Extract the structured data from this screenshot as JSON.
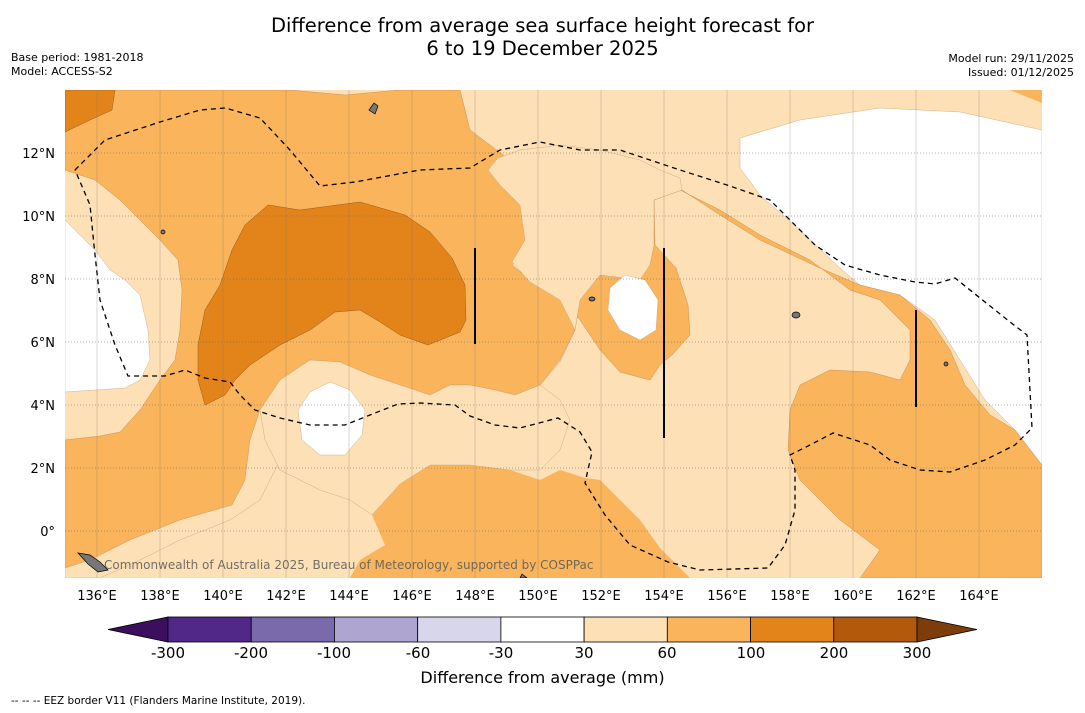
{
  "title": {
    "line1": "Difference from average sea surface height forecast for",
    "line2": "6 to 19 December 2025"
  },
  "meta": {
    "base_period": "Base period: 1981-2018",
    "model": "Model: ACCESS-S2",
    "model_run": "Model run: 29/11/2025",
    "issued": "Issued: 01/12/2025"
  },
  "map": {
    "lon_range": [
      135,
      166
    ],
    "lat_range": [
      -1.5,
      14
    ],
    "x_ticks": [
      "136°E",
      "138°E",
      "140°E",
      "142°E",
      "144°E",
      "146°E",
      "148°E",
      "150°E",
      "152°E",
      "154°E",
      "156°E",
      "158°E",
      "160°E",
      "162°E",
      "164°E"
    ],
    "y_ticks": [
      "12°N",
      "10°N",
      "8°N",
      "6°N",
      "4°N",
      "2°N",
      "0°"
    ],
    "copyright": "Commonwealth of Australia 2025, Bureau of Meteorology, supported by COSPPac"
  },
  "colorbar": {
    "title": "Difference from average (mm)",
    "tick_labels": [
      "-300",
      "-200",
      "-100",
      "-60",
      "-30",
      "30",
      "60",
      "100",
      "200",
      "300"
    ],
    "colors": [
      "#3b0f5e",
      "#512888",
      "#7a6aac",
      "#aea5d0",
      "#d7d6ea",
      "#ffffff",
      "#fde0b5",
      "#f9b45c",
      "#e2841a",
      "#b2590c",
      "#7d3c0c"
    ]
  },
  "footnote": "--  --  -- EEZ border V11 (Flanders Marine Institute, 2019)."
}
